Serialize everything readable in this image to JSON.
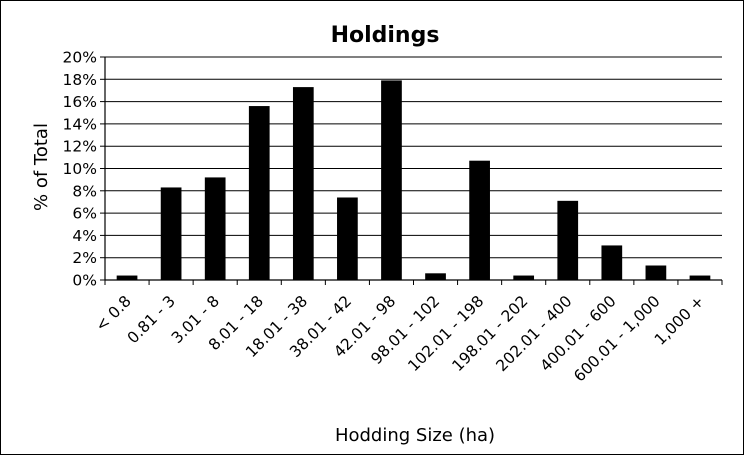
{
  "chart_data": {
    "type": "bar",
    "title": "Holdings",
    "xlabel": "Hodding Size (ha)",
    "ylabel": "% of Total",
    "categories": [
      "< 0.8",
      "0.81 - 3",
      "3.01 - 8",
      "8.01 - 18",
      "18.01 - 38",
      "38.01 - 42",
      "42.01 - 98",
      "98.01 - 102",
      "102.01 - 198",
      "198.01 - 202",
      "202.01 - 400",
      "400.01 - 600",
      "600.01 - 1,000",
      "1,000 +"
    ],
    "values": [
      0.4,
      8.3,
      9.2,
      15.6,
      17.3,
      7.4,
      17.9,
      0.6,
      10.7,
      0.4,
      7.1,
      3.1,
      1.3,
      0.4
    ],
    "ylim": [
      0,
      20
    ],
    "yticks": [
      0,
      2,
      4,
      6,
      8,
      10,
      12,
      14,
      16,
      18,
      20
    ],
    "ytick_labels": [
      "0%",
      "2%",
      "4%",
      "6%",
      "8%",
      "10%",
      "12%",
      "14%",
      "16%",
      "18%",
      "20%"
    ],
    "grid": true,
    "legend": "none",
    "bar_color": "#000000"
  }
}
